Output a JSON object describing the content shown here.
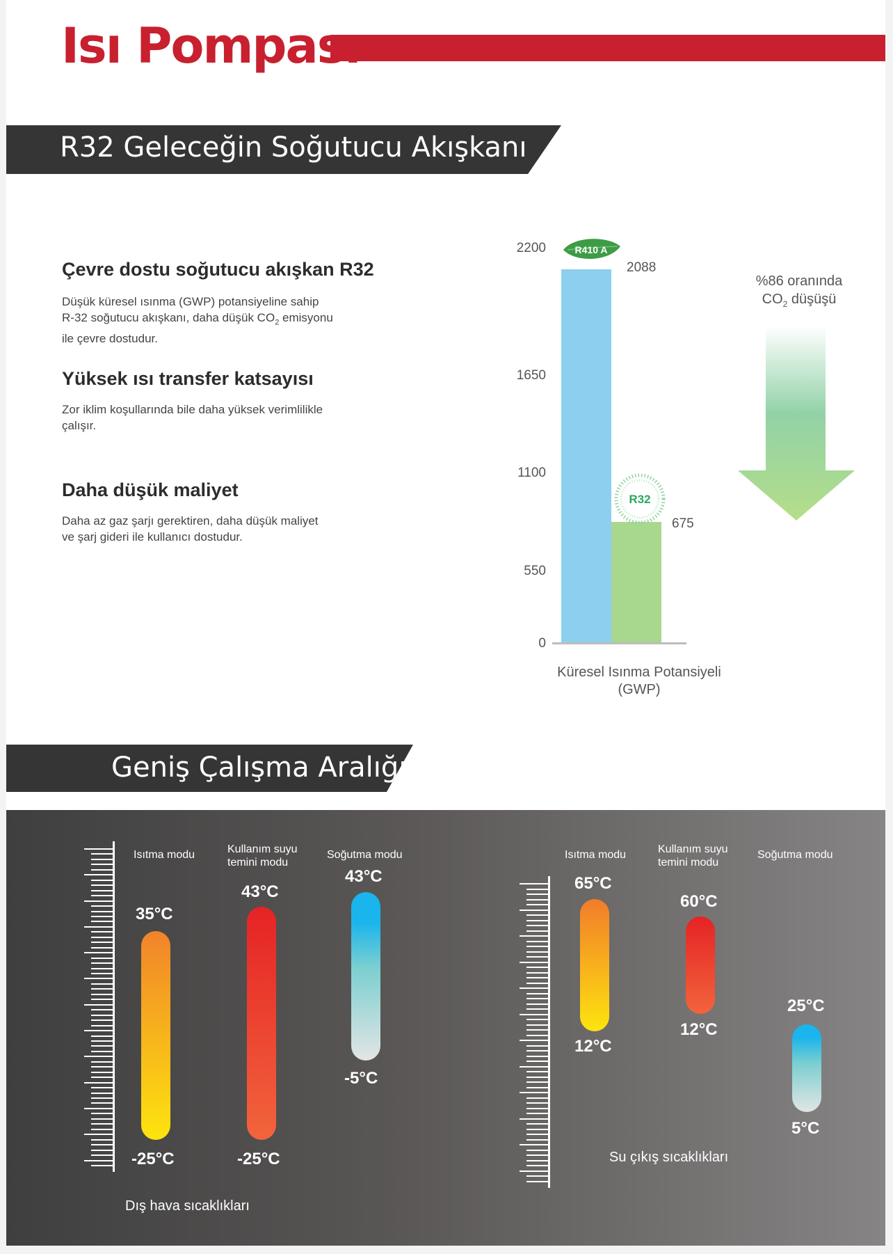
{
  "header": {
    "title": "Isı Pompası"
  },
  "section1": {
    "banner": "R32 Geleceğin Soğutucu Akışkanı",
    "features": [
      {
        "title": "Çevre dostu soğutucu akışkan R32",
        "text_lines": [
          "Düşük küresel ısınma (GWP) potansiyeline sahip"
        ],
        "text_pre": "R-32 soğutucu akışkanı, daha düşük CO",
        "text_sub": "2",
        "text_post": " emisyonu",
        "text_last": "ile çevre dostudur."
      },
      {
        "title": "Yüksek ısı transfer katsayısı",
        "text_lines": [
          "Zor iklim koşullarında bile daha yüksek verimlilikle",
          "çalışır."
        ]
      },
      {
        "title": "Daha düşük maliyet",
        "text_lines": [
          "Daha az gaz şarjı gerektiren, daha düşük maliyet",
          "ve şarj gideri ile kullanıcı dostudur."
        ]
      }
    ]
  },
  "chart_data": {
    "type": "bar",
    "categories": [
      "R410 A",
      "R32"
    ],
    "values": [
      2088,
      675
    ],
    "yticks": [
      "2200",
      "1650",
      "1100",
      "550",
      "0"
    ],
    "ylim": [
      0,
      2200
    ],
    "value_labels": [
      "2088",
      "675"
    ],
    "xlabel_line1": "Küresel Isınma Potansiyeli",
    "xlabel_line2": "(GWP)",
    "annotation_line1": "%86 oranında",
    "annotation_pre": "CO",
    "annotation_sub": "2",
    "annotation_post": " düşüşü",
    "colors": {
      "r410a": "#8ccfee",
      "r32": "#a8d88e",
      "badge_leaf": "#3e9b46",
      "badge_r32": "#2aa85a"
    }
  },
  "section2": {
    "banner": "Geniş Çalışma Aralığı",
    "outdoor": {
      "caption": "Dış hava sıcaklıkları",
      "columns": [
        {
          "label": "Isıtma modu",
          "max": "35°C",
          "min": "-25°C"
        },
        {
          "label_line1": "Kullanım suyu",
          "label_line2": "temini modu",
          "max": "43°C",
          "min": "-25°C"
        },
        {
          "label": "Soğutma modu",
          "max": "43°C",
          "min": "-5°C"
        }
      ]
    },
    "water": {
      "caption": "Su çıkış sıcaklıkları",
      "columns": [
        {
          "label": "Isıtma modu",
          "max": "65°C",
          "min": "12°C"
        },
        {
          "label_line1": "Kullanım suyu",
          "label_line2": "temini modu",
          "max": "60°C",
          "min": "12°C"
        },
        {
          "label": "Soğutma modu",
          "max": "25°C",
          "min": "5°C"
        }
      ]
    }
  }
}
